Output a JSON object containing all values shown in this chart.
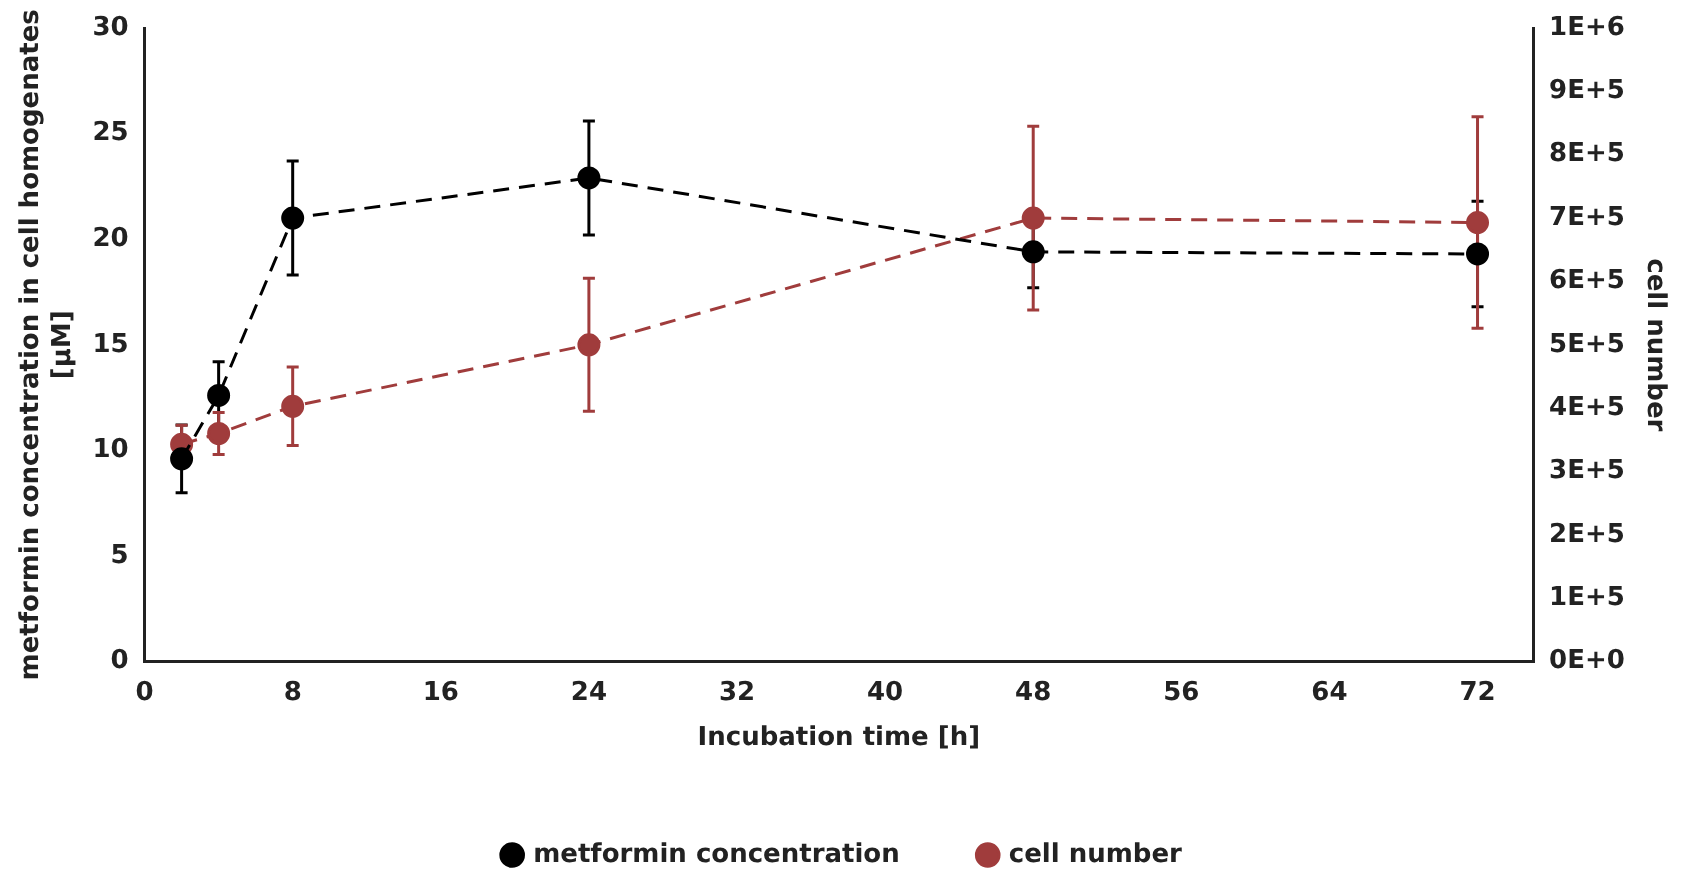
{
  "chart_data": {
    "type": "line",
    "xlabel": "Incubation time [h]",
    "ylabel": "metformin concentration in cell homogenates\n[µM]",
    "y2label": "cell number",
    "x": [
      2,
      4,
      8,
      24,
      48,
      72
    ],
    "series": [
      {
        "name": "metformin concentration",
        "color": "#000000",
        "values": [
          9.6,
          12.6,
          21,
          22.9,
          19.4,
          19.3
        ],
        "errors": [
          1.6,
          1.6,
          2.7,
          2.7,
          1.7,
          2.5
        ]
      },
      {
        "name": "cell number",
        "color": "#a03c3c",
        "axis": "y2",
        "values": [
          343000,
          360000,
          403000,
          500000,
          700000,
          693000
        ],
        "errors": [
          30000,
          33000,
          62000,
          105000,
          145000,
          167000
        ]
      }
    ],
    "xlim": [
      0,
      75
    ],
    "xticks": [
      0,
      8,
      16,
      24,
      32,
      40,
      48,
      56,
      64,
      72
    ],
    "ylim": [
      0,
      30
    ],
    "yticks": [
      0,
      5,
      10,
      15,
      20,
      25,
      30
    ],
    "y2lim": [
      0,
      1000000
    ],
    "y2ticks": [
      {
        "value": 0,
        "label": "0E+0"
      },
      {
        "value": 100000,
        "label": "1E+5"
      },
      {
        "value": 200000,
        "label": "2E+5"
      },
      {
        "value": 300000,
        "label": "3E+5"
      },
      {
        "value": 400000,
        "label": "4E+5"
      },
      {
        "value": 500000,
        "label": "5E+5"
      },
      {
        "value": 600000,
        "label": "6E+5"
      },
      {
        "value": 700000,
        "label": "7E+5"
      },
      {
        "value": 800000,
        "label": "8E+5"
      },
      {
        "value": 900000,
        "label": "9E+5"
      },
      {
        "value": 1000000,
        "label": "1E+6"
      }
    ],
    "marker": "circle",
    "line_style": "dashed",
    "grid": false,
    "legend": "bottom"
  }
}
